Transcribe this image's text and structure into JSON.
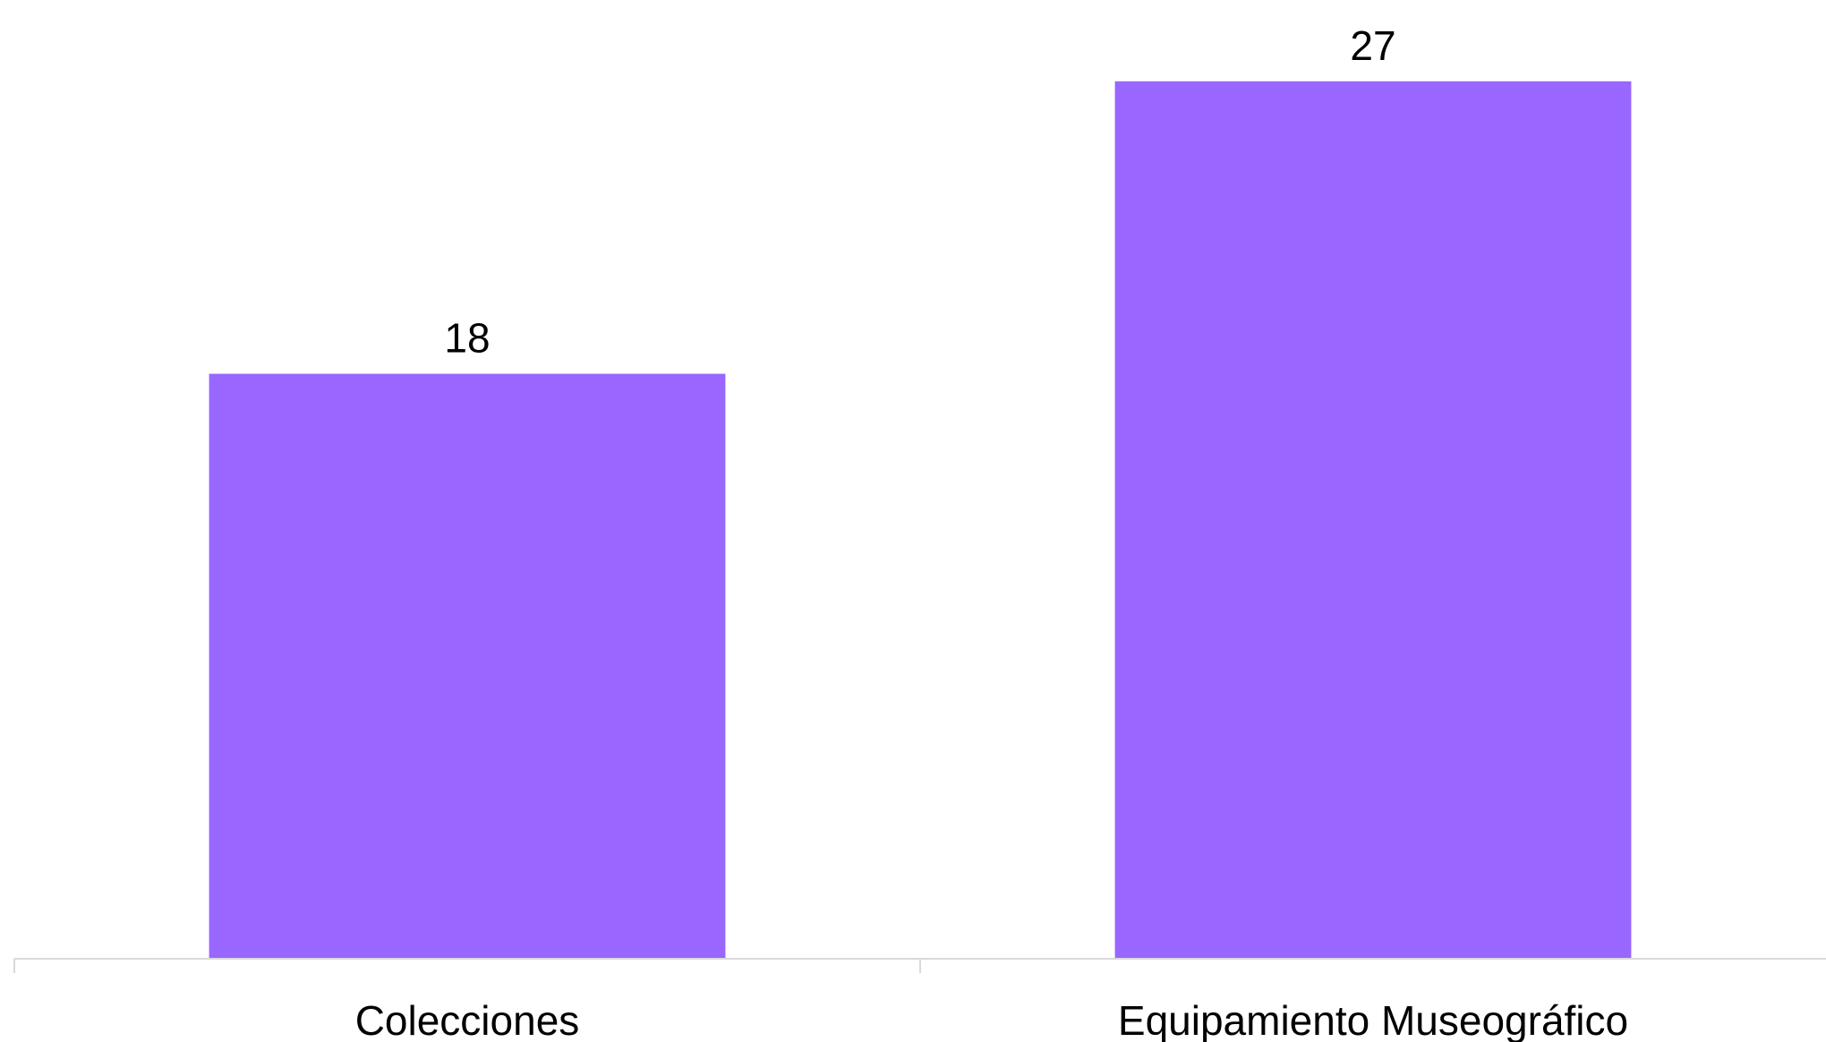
{
  "chart_data": {
    "type": "bar",
    "categories": [
      "Colecciones",
      "Equipamiento Museográfico"
    ],
    "values": [
      18,
      27
    ],
    "data_labels": [
      "18",
      "27"
    ],
    "title": "",
    "xlabel": "",
    "ylabel": "",
    "ylim": [
      0,
      28.4
    ],
    "grid": false,
    "legend": "none",
    "bar_color": "#9966ff",
    "axis_color": "#d9d9d9"
  }
}
